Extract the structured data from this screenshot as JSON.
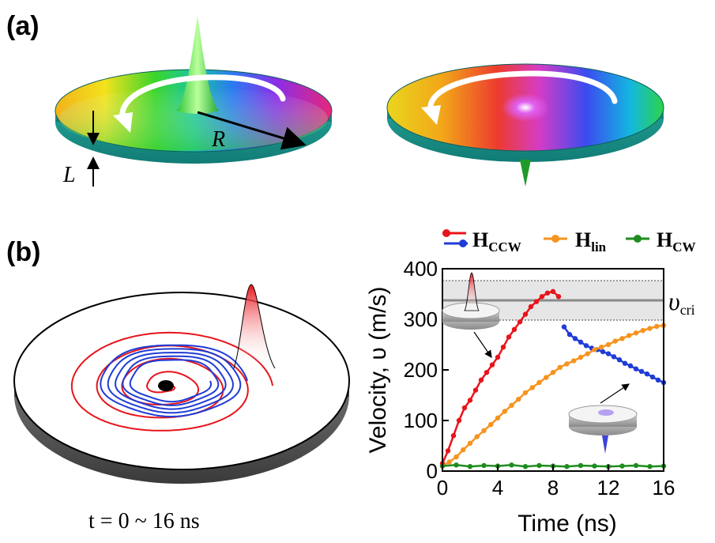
{
  "panels": {
    "a": {
      "label": "(a)",
      "radius_label": "R",
      "thickness_label": "L"
    },
    "b": {
      "label": "(b)",
      "time_caption": "t = 0 ~ 16 ns"
    }
  },
  "chart_data": {
    "type": "line",
    "title": "",
    "xlabel": "Time (ns)",
    "ylabel": "Velocity, υ (m/s)",
    "xlim": [
      0,
      16
    ],
    "ylim": [
      0,
      400
    ],
    "xticks": [
      0,
      4,
      8,
      12,
      16
    ],
    "yticks": [
      0,
      100,
      200,
      300,
      400
    ],
    "grid": false,
    "legend_position": "top",
    "annotation": {
      "text": "υ",
      "sub": "cri",
      "value": 333,
      "band": [
        295,
        370
      ]
    },
    "legend": [
      {
        "main": "H",
        "sub": "CCW",
        "colors": [
          "#e8141b",
          "#1f3cd6"
        ]
      },
      {
        "main": "H",
        "sub": "lin",
        "colors": [
          "#f7931e"
        ]
      },
      {
        "main": "H",
        "sub": "CW",
        "colors": [
          "#1e8c1e"
        ]
      }
    ],
    "series": [
      {
        "key": "ccw_red",
        "color": "#e8141b",
        "x": [
          0.0,
          0.4,
          0.8,
          1.2,
          1.6,
          2.0,
          2.4,
          2.8,
          3.2,
          3.6,
          4.0,
          4.4,
          4.8,
          5.2,
          5.6,
          6.0,
          6.4,
          6.8,
          7.2,
          7.6,
          8.0,
          8.4
        ],
        "y": [
          15,
          40,
          70,
          100,
          125,
          140,
          160,
          180,
          195,
          210,
          225,
          245,
          265,
          280,
          295,
          310,
          325,
          335,
          345,
          352,
          355,
          345
        ]
      },
      {
        "key": "ccw_blue",
        "color": "#1f3cd6",
        "x": [
          8.8,
          9.2,
          9.6,
          10.0,
          10.4,
          10.8,
          11.2,
          11.6,
          12.0,
          12.4,
          12.8,
          13.2,
          13.6,
          14.0,
          14.4,
          14.8,
          15.2,
          15.6,
          16.0
        ],
        "y": [
          285,
          270,
          262,
          255,
          248,
          243,
          240,
          236,
          232,
          226,
          220,
          213,
          208,
          202,
          197,
          192,
          186,
          180,
          175
        ]
      },
      {
        "key": "lin",
        "color": "#f7931e",
        "x": [
          0.0,
          0.5,
          1.0,
          1.5,
          2.0,
          2.5,
          3.0,
          3.5,
          4.0,
          4.5,
          5.0,
          5.5,
          6.0,
          6.5,
          7.0,
          7.5,
          8.0,
          8.5,
          9.0,
          9.5,
          10.0,
          10.5,
          11.0,
          11.5,
          12.0,
          12.5,
          13.0,
          13.5,
          14.0,
          14.5,
          15.0,
          15.5,
          16.0
        ],
        "y": [
          10,
          18,
          28,
          42,
          55,
          68,
          80,
          92,
          105,
          118,
          130,
          142,
          155,
          165,
          175,
          185,
          195,
          205,
          212,
          218,
          225,
          232,
          240,
          245,
          250,
          257,
          262,
          268,
          273,
          278,
          282,
          286,
          288
        ]
      },
      {
        "key": "cw",
        "color": "#1e8c1e",
        "x": [
          0,
          1,
          2,
          3,
          4,
          5,
          6,
          7,
          8,
          9,
          10,
          11,
          12,
          13,
          14,
          15,
          16
        ],
        "y": [
          10,
          12,
          9,
          11,
          10,
          12,
          9,
          11,
          10,
          9,
          11,
          10,
          9,
          10,
          11,
          9,
          10
        ]
      }
    ]
  }
}
